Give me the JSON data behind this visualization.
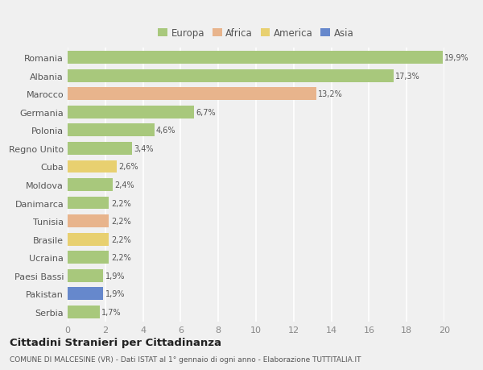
{
  "categories": [
    "Romania",
    "Albania",
    "Marocco",
    "Germania",
    "Polonia",
    "Regno Unito",
    "Cuba",
    "Moldova",
    "Danimarca",
    "Tunisia",
    "Brasile",
    "Ucraina",
    "Paesi Bassi",
    "Pakistan",
    "Serbia"
  ],
  "values": [
    19.9,
    17.3,
    13.2,
    6.7,
    4.6,
    3.4,
    2.6,
    2.4,
    2.2,
    2.2,
    2.2,
    2.2,
    1.9,
    1.9,
    1.7
  ],
  "labels": [
    "19,9%",
    "17,3%",
    "13,2%",
    "6,7%",
    "4,6%",
    "3,4%",
    "2,6%",
    "2,4%",
    "2,2%",
    "2,2%",
    "2,2%",
    "2,2%",
    "1,9%",
    "1,9%",
    "1,7%"
  ],
  "continents": [
    "Europa",
    "Europa",
    "Africa",
    "Europa",
    "Europa",
    "Europa",
    "America",
    "Europa",
    "Europa",
    "Africa",
    "America",
    "Europa",
    "Europa",
    "Asia",
    "Europa"
  ],
  "colors": {
    "Europa": "#a8c87c",
    "Africa": "#e8b48c",
    "America": "#e8d070",
    "Asia": "#6688cc"
  },
  "legend_labels": [
    "Europa",
    "Africa",
    "America",
    "Asia"
  ],
  "legend_colors": [
    "#a8c87c",
    "#e8b48c",
    "#e8d070",
    "#6688cc"
  ],
  "title": "Cittadini Stranieri per Cittadinanza",
  "subtitle": "COMUNE DI MALCESINE (VR) - Dati ISTAT al 1° gennaio di ogni anno - Elaborazione TUTTITALIA.IT",
  "xlim": [
    0,
    20
  ],
  "xticks": [
    0,
    2,
    4,
    6,
    8,
    10,
    12,
    14,
    16,
    18,
    20
  ],
  "background_color": "#f0f0f0",
  "grid_color": "#ffffff",
  "bar_height": 0.7
}
